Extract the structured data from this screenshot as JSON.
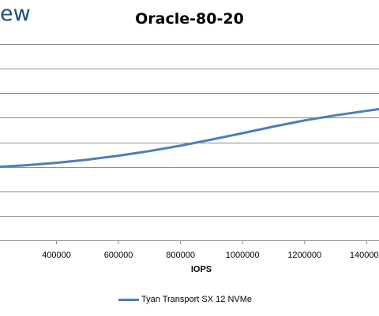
{
  "watermark_text": "ew",
  "chart_data": {
    "type": "line",
    "title": "Oracle-80-20",
    "xlabel": "IOPS",
    "ylabel": "",
    "x_ticks": [
      400000,
      600000,
      800000,
      1000000,
      1200000,
      1400000
    ],
    "x_tick_labels": [
      "400000",
      "600000",
      "800000",
      "1000000",
      "1200000",
      "1400000"
    ],
    "xlim": [
      218000,
      1440000
    ],
    "grid": true,
    "legend_position": "bottom",
    "series": [
      {
        "name": "Tyan Transport SX 12 NVMe",
        "color": "#4a7ebb",
        "points": [
          [
            218000,
            3.0
          ],
          [
            300000,
            3.06
          ],
          [
            400000,
            3.16
          ],
          [
            500000,
            3.29
          ],
          [
            600000,
            3.45
          ],
          [
            700000,
            3.64
          ],
          [
            800000,
            3.86
          ],
          [
            900000,
            4.11
          ],
          [
            1000000,
            4.37
          ],
          [
            1100000,
            4.64
          ],
          [
            1200000,
            4.89
          ],
          [
            1300000,
            5.1
          ],
          [
            1400000,
            5.28
          ],
          [
            1440000,
            5.35
          ]
        ]
      }
    ]
  }
}
